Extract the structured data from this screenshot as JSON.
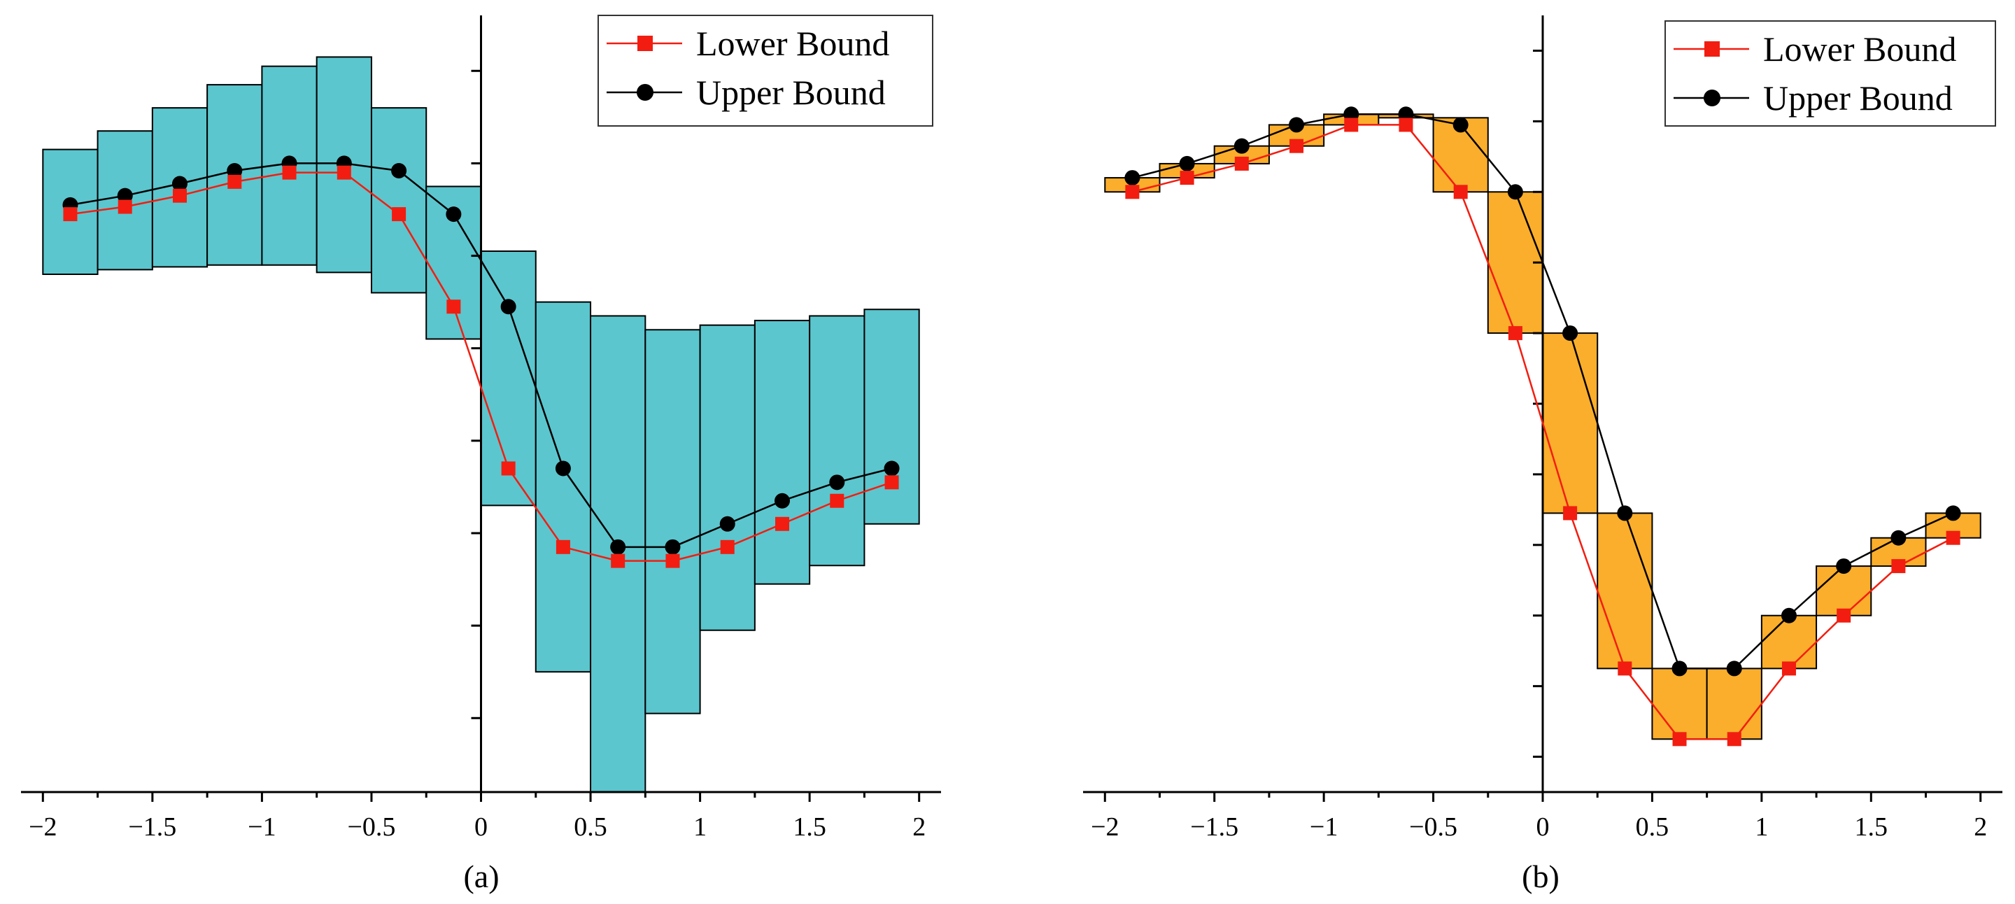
{
  "colors": {
    "panel_a_fill": "#5BC6CE",
    "panel_b_fill": "#FBAE2B",
    "lower_bound": "#F21D10",
    "upper_bound": "#000000",
    "axis": "#000000"
  },
  "chart_data": [
    {
      "type": "line",
      "caption": "(a)",
      "legend": {
        "position": "top-right",
        "entries": [
          "Lower Bound",
          "Upper Bound"
        ]
      },
      "x_ticks": [
        -2,
        -1.5,
        -1,
        -0.5,
        0,
        0.5,
        1,
        1.5,
        2
      ],
      "x_tick_labels": [
        "−2",
        "−1.5",
        "−1",
        "−0.5",
        "0",
        "0.5",
        "1",
        "1.5",
        "2"
      ],
      "xlim": [
        -2.1,
        2.1
      ],
      "ylim": [
        -4.8,
        3.6
      ],
      "y_ticks": [
        -4,
        -3,
        -2,
        -1,
        0,
        1,
        2,
        3
      ],
      "bin_edges": [
        -2,
        -1.75,
        -1.5,
        -1.25,
        -1,
        -0.75,
        -0.5,
        -0.25,
        0,
        0.25,
        0.5,
        0.75,
        1,
        1.25,
        1.5,
        1.75,
        2
      ],
      "bins_low": [
        0.8,
        0.85,
        0.88,
        0.9,
        0.9,
        0.82,
        0.6,
        0.1,
        -1.7,
        -3.5,
        -4.8,
        -3.95,
        -3.05,
        -2.55,
        -2.35,
        -1.9
      ],
      "bins_high": [
        2.15,
        2.35,
        2.6,
        2.85,
        3.05,
        3.15,
        2.6,
        1.75,
        1.05,
        0.5,
        0.35,
        0.2,
        0.25,
        0.3,
        0.35,
        0.42
      ],
      "series": [
        {
          "name": "Lower Bound",
          "marker": "square",
          "x": [
            -1.875,
            -1.625,
            -1.375,
            -1.125,
            -0.875,
            -0.625,
            -0.375,
            -0.125,
            0.125,
            0.375,
            0.625,
            0.875,
            1.125,
            1.375,
            1.625,
            1.875
          ],
          "y": [
            1.45,
            1.53,
            1.65,
            1.8,
            1.9,
            1.9,
            1.45,
            0.45,
            -1.3,
            -2.15,
            -2.3,
            -2.3,
            -2.15,
            -1.9,
            -1.65,
            -1.45
          ]
        },
        {
          "name": "Upper Bound",
          "marker": "circle",
          "x": [
            -1.875,
            -1.625,
            -1.375,
            -1.125,
            -0.875,
            -0.625,
            -0.375,
            -0.125,
            0.125,
            0.375,
            0.625,
            0.875,
            1.125,
            1.375,
            1.625,
            1.875
          ],
          "y": [
            1.55,
            1.65,
            1.78,
            1.92,
            2.0,
            2.0,
            1.92,
            1.45,
            0.45,
            -1.3,
            -2.15,
            -2.15,
            -1.9,
            -1.65,
            -1.45,
            -1.3
          ]
        }
      ]
    },
    {
      "type": "line",
      "caption": "(b)",
      "legend": {
        "position": "top-right",
        "entries": [
          "Lower Bound",
          "Upper Bound"
        ]
      },
      "x_ticks": [
        -2,
        -1.5,
        -1,
        -0.5,
        0,
        0.5,
        1,
        1.5,
        2
      ],
      "x_tick_labels": [
        "−2",
        "−1.5",
        "−1",
        "−0.5",
        "0",
        "0.5",
        "1",
        "1.5",
        "2"
      ],
      "xlim": [
        -2.1,
        2.1
      ],
      "ylim": [
        -1.1,
        1.1
      ],
      "y_ticks": [
        -1,
        -0.8,
        -0.6,
        -0.4,
        -0.2,
        0,
        0.2,
        0.4,
        0.6,
        0.8,
        1
      ],
      "bin_edges": [
        -2,
        -1.75,
        -1.5,
        -1.25,
        -1,
        -0.75,
        -0.5,
        -0.25,
        0,
        0.25,
        0.5,
        0.75,
        1,
        1.25,
        1.5,
        1.75,
        2
      ],
      "bins_low": [
        0.6,
        0.64,
        0.68,
        0.73,
        0.79,
        0.81,
        0.6,
        0.2,
        -0.31,
        -0.75,
        -0.95,
        -0.95,
        -0.75,
        -0.6,
        -0.46,
        -0.38
      ],
      "bins_high": [
        0.64,
        0.68,
        0.73,
        0.79,
        0.82,
        0.82,
        0.81,
        0.6,
        0.2,
        -0.31,
        -0.75,
        -0.75,
        -0.6,
        -0.46,
        -0.38,
        -0.31
      ],
      "series": [
        {
          "name": "Lower Bound",
          "marker": "square",
          "x": [
            -1.875,
            -1.625,
            -1.375,
            -1.125,
            -0.875,
            -0.625,
            -0.375,
            -0.125,
            0.125,
            0.375,
            0.625,
            0.875,
            1.125,
            1.375,
            1.625,
            1.875
          ],
          "y": [
            0.6,
            0.64,
            0.68,
            0.73,
            0.79,
            0.79,
            0.6,
            0.2,
            -0.31,
            -0.75,
            -0.95,
            -0.95,
            -0.75,
            -0.6,
            -0.46,
            -0.38
          ]
        },
        {
          "name": "Upper Bound",
          "marker": "circle",
          "x": [
            -1.875,
            -1.625,
            -1.375,
            -1.125,
            -0.875,
            -0.625,
            -0.375,
            -0.125,
            0.125,
            0.375,
            0.625,
            0.875,
            1.125,
            1.375,
            1.625,
            1.875
          ],
          "y": [
            0.64,
            0.68,
            0.73,
            0.79,
            0.82,
            0.82,
            0.79,
            0.6,
            0.2,
            -0.31,
            -0.75,
            -0.75,
            -0.6,
            -0.46,
            -0.38,
            -0.31
          ]
        }
      ]
    }
  ]
}
